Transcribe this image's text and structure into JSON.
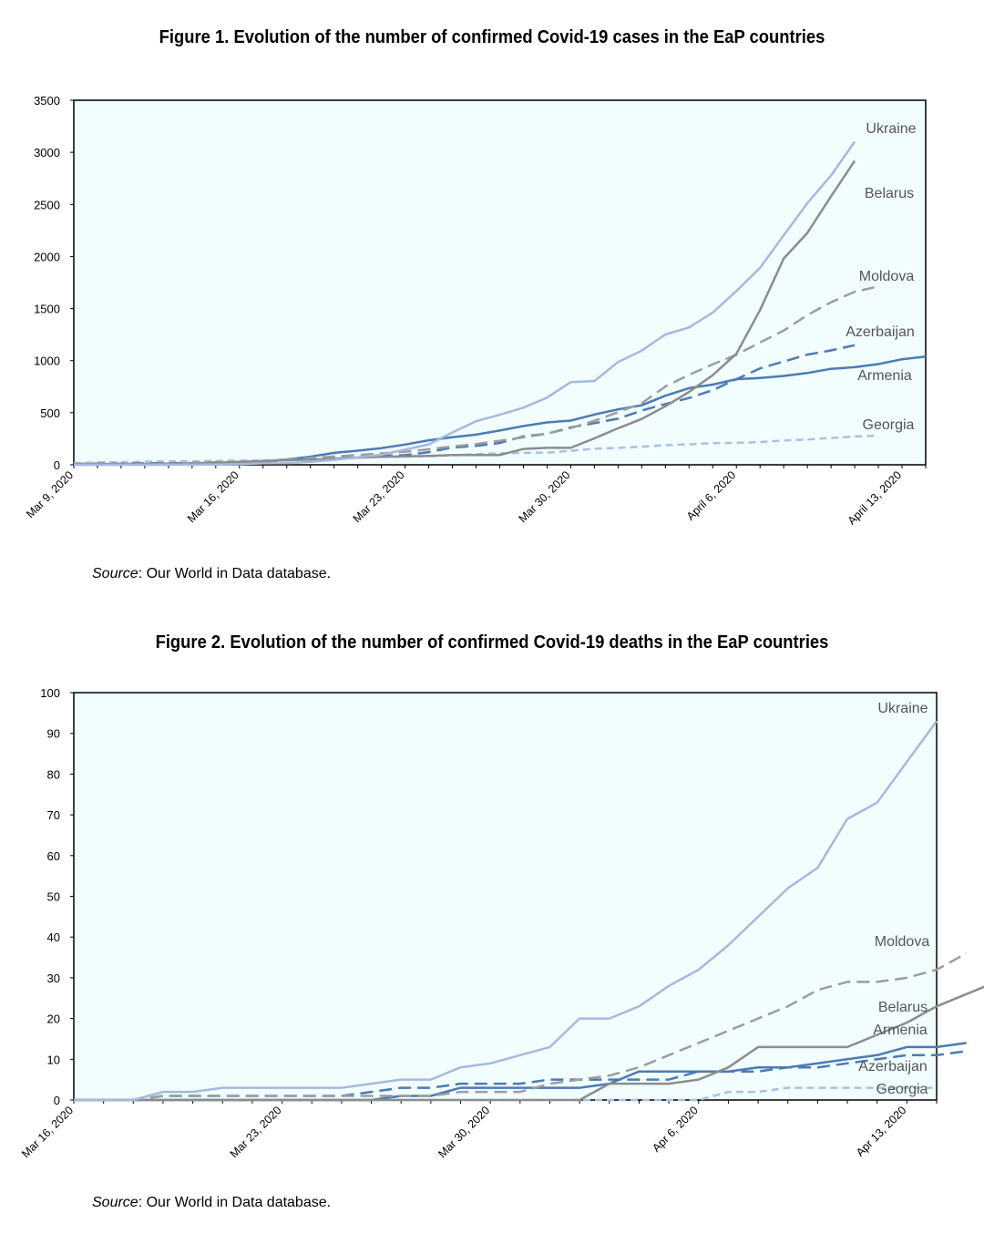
{
  "colors": {
    "plot_bg": "#f2fefe",
    "Ukraine": "#a4b9de",
    "Belarus": "#8c8c8c",
    "Moldova": "#9d9d9d",
    "Azerbaijan": "#4a7bb5",
    "Armenia": "#4a7bb5",
    "Georgia": "#a9c0e6"
  },
  "chart_data": [
    {
      "type": "line",
      "title": "Figure 1. Evolution of the number of confirmed Covid-19 cases in the EaP countries",
      "source_label": "Source",
      "source_text": ": Our World in Data database.",
      "xlabel": "",
      "ylabel": "",
      "ylim": [
        0,
        3500
      ],
      "yticks": [
        0,
        500,
        1000,
        1500,
        2000,
        2500,
        3000,
        3500
      ],
      "grid": false,
      "legend": "inline labels at line ends",
      "x_start": "Mar 9, 2020",
      "x_end": "Apr 14, 2020",
      "x_tick_labels": [
        "Mar 9, 2020",
        "Mar 16, 2020",
        "Mar 23, 2020",
        "Mar 30, 2020",
        "April 6, 2020",
        "April 13, 2020"
      ],
      "series": [
        {
          "name": "Ukraine",
          "style": "solid",
          "values": [
            1,
            1,
            1,
            1,
            1,
            3,
            3,
            7,
            14,
            16,
            29,
            47,
            73,
            97,
            145,
            196,
            311,
            418,
            480,
            549,
            645,
            794,
            804,
            987,
            1096,
            1251,
            1319,
            1462,
            1668,
            1892,
            2203,
            2511,
            2777,
            3102
          ]
        },
        {
          "name": "Belarus",
          "style": "solid",
          "values": [
            6,
            6,
            9,
            9,
            12,
            13,
            21,
            27,
            36,
            44,
            51,
            56,
            69,
            76,
            81,
            86,
            94,
            94,
            94,
            152,
            163,
            163,
            254,
            351,
            440,
            562,
            700,
            861,
            1066,
            1486,
            1981,
            2226,
            2578,
            2919
          ]
        },
        {
          "name": "Moldova",
          "style": "dashed",
          "values": [
            1,
            1,
            2,
            3,
            6,
            12,
            23,
            29,
            30,
            49,
            66,
            80,
            94,
            109,
            125,
            149,
            177,
            199,
            231,
            263,
            298,
            353,
            423,
            505,
            591,
            752,
            864,
            965,
            1056,
            1174,
            1289,
            1438,
            1560,
            1662,
            1712
          ]
        },
        {
          "name": "Azerbaijan",
          "style": "dashed",
          "values": [
            9,
            11,
            11,
            15,
            15,
            17,
            23,
            28,
            34,
            44,
            53,
            65,
            72,
            87,
            93,
            122,
            165,
            182,
            209,
            273,
            298,
            359,
            400,
            443,
            521,
            584,
            641,
            717,
            822,
            926,
            991,
            1058,
            1098,
            1148
          ]
        },
        {
          "name": "Armenia",
          "style": "solid",
          "values": [
            1,
            1,
            1,
            1,
            1,
            4,
            8,
            18,
            26,
            52,
            78,
            115,
            136,
            160,
            194,
            235,
            265,
            290,
            329,
            372,
            407,
            424,
            482,
            532,
            571,
            663,
            736,
            770,
            822,
            833,
            853,
            881,
            921,
            937,
            967,
            1013,
            1039
          ]
        },
        {
          "name": "Georgia",
          "style": "dotted",
          "values": [
            15,
            24,
            25,
            30,
            33,
            34,
            38,
            40,
            43,
            49,
            54,
            61,
            70,
            75,
            79,
            83,
            90,
            103,
            110,
            115,
            117,
            134,
            155,
            162,
            174,
            188,
            196,
            208,
            211,
            218,
            234,
            242,
            257,
            272,
            280
          ]
        }
      ]
    },
    {
      "type": "line",
      "title": "Figure 2. Evolution of the number of confirmed Covid-19 deaths in the EaP countries",
      "source_label": "Source",
      "source_text": ": Our World in Data database.",
      "xlabel": "",
      "ylabel": "",
      "ylim": [
        0,
        100
      ],
      "yticks": [
        0,
        10,
        20,
        30,
        40,
        50,
        60,
        70,
        80,
        90,
        100
      ],
      "grid": false,
      "legend": "inline labels at line ends",
      "x_start": "Mar 16, 2020",
      "x_end": "Apr 14, 2020",
      "x_tick_labels": [
        "Mar 16, 2020",
        "Mar 23, 2020",
        "Mar 30, 2020",
        "Apr 6, 2020",
        "Apr 13, 2020"
      ],
      "series": [
        {
          "name": "Ukraine",
          "style": "solid",
          "values": [
            0,
            0,
            0,
            2,
            2,
            3,
            3,
            3,
            3,
            3,
            4,
            5,
            5,
            8,
            9,
            11,
            13,
            20,
            20,
            23,
            28,
            32,
            38,
            45,
            52,
            57,
            69,
            73,
            83,
            93
          ]
        },
        {
          "name": "Moldova",
          "style": "dashed",
          "values": [
            0,
            0,
            0,
            1,
            1,
            1,
            1,
            1,
            1,
            1,
            1,
            1,
            1,
            2,
            2,
            2,
            4,
            5,
            6,
            8,
            11,
            14,
            17,
            20,
            23,
            27,
            29,
            29,
            30,
            32,
            36
          ]
        },
        {
          "name": "Belarus",
          "style": "solid",
          "values": [
            0,
            0,
            0,
            0,
            0,
            0,
            0,
            0,
            0,
            0,
            0,
            0,
            0,
            0,
            0,
            0,
            0,
            0,
            4,
            4,
            4,
            5,
            8,
            13,
            13,
            13,
            13,
            16,
            19,
            23,
            26,
            29
          ]
        },
        {
          "name": "Armenia",
          "style": "solid",
          "values": [
            0,
            0,
            0,
            0,
            0,
            0,
            0,
            0,
            0,
            0,
            0,
            1,
            1,
            3,
            3,
            3,
            3,
            3,
            4,
            7,
            7,
            7,
            7,
            8,
            8,
            9,
            10,
            11,
            13,
            13,
            14
          ]
        },
        {
          "name": "Azerbaijan",
          "style": "dashed",
          "values": [
            0,
            0,
            0,
            1,
            1,
            1,
            1,
            1,
            1,
            1,
            2,
            3,
            3,
            4,
            4,
            4,
            5,
            5,
            5,
            5,
            5,
            7,
            7,
            7,
            8,
            8,
            9,
            10,
            11,
            11,
            12
          ]
        },
        {
          "name": "Georgia",
          "style": "dotted",
          "values": [
            0,
            0,
            0,
            0,
            0,
            0,
            0,
            0,
            0,
            0,
            0,
            0,
            0,
            0,
            0,
            0,
            0,
            0,
            0,
            0,
            0,
            0,
            2,
            2,
            3,
            3,
            3,
            3,
            3,
            3
          ]
        }
      ]
    }
  ]
}
